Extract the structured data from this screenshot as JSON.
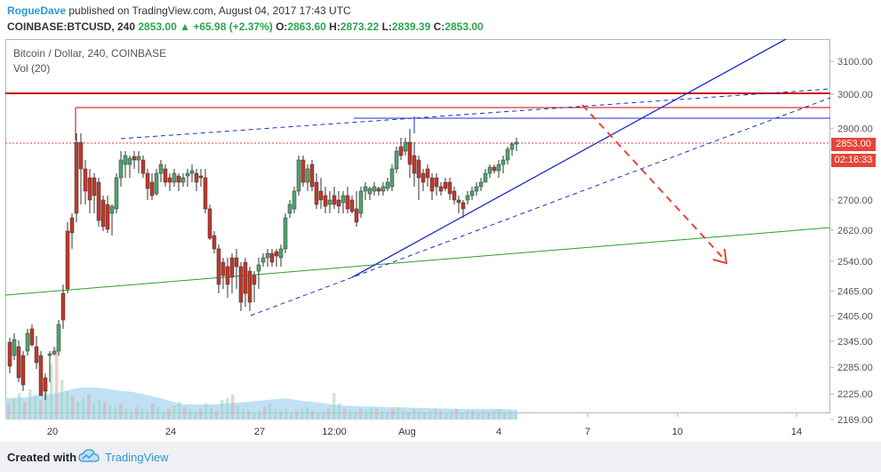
{
  "header": {
    "author": "RogueDave",
    "published_text": "published on TradingView.com, August 04, 2017 17:43 UTC",
    "symbol": "COINBASE:BTCUSD, 240",
    "last": "2853.00",
    "change": "+65.98 (+2.37%)",
    "o_label": "O:",
    "o_value": "2863.60",
    "h_label": "H:",
    "h_value": "2873.22",
    "l_label": "L:",
    "l_value": "2839.39",
    "c_label": "C:",
    "c_value": "2853.00"
  },
  "chart_info": {
    "title": "Bitcoin / Dollar, 240, COINBASE",
    "indicator": "Vol (20)"
  },
  "badges": {
    "price": "2853.00",
    "countdown": "02:16:33"
  },
  "footer": {
    "created_with": "Created with",
    "brand": "TradingView"
  },
  "colors": {
    "up": "#50a46f",
    "down": "#c0392b",
    "resistance": "#cc0000",
    "trendline": "#1f2ecb",
    "support": "#2aa02a",
    "volume": "#a9d6f2"
  },
  "chart_data": {
    "type": "candlestick",
    "title": "Bitcoin / Dollar, 240, COINBASE",
    "y_axis_ticks": [
      2169,
      2225,
      2285,
      2345,
      2405,
      2465,
      2540,
      2620,
      2700,
      2900,
      3000,
      3100
    ],
    "y_tick_labels": [
      "2169.00",
      "2225.00",
      "2285.00",
      "2345.00",
      "2405.00",
      "2465.00",
      "2540.00",
      "2620.00",
      "2700.00",
      "2900.00",
      "3000.00",
      "3100.00"
    ],
    "x_tick_labels": [
      "20",
      "24",
      "27",
      "12:00",
      "Aug",
      "4",
      "7",
      "10",
      "14"
    ],
    "scale": "logarithmic",
    "last_price": 2853.0,
    "annotations": {
      "horizontal_resistance": 3000,
      "horizontal_lines": [
        2950,
        2925
      ],
      "projected_target": 2540
    }
  }
}
